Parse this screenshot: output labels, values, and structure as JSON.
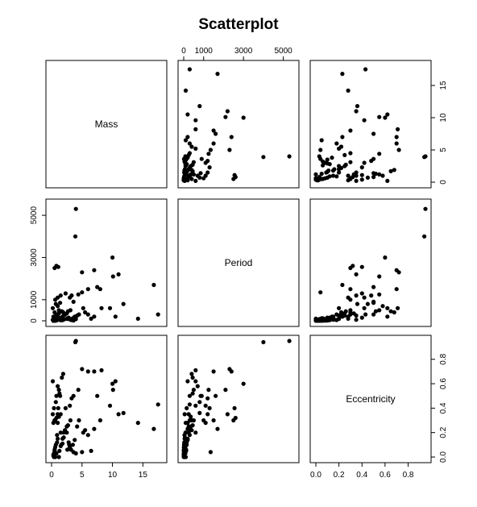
{
  "chart_data": {
    "type": "scatter",
    "title": "Scatterplot",
    "variables": [
      "Mass",
      "Period",
      "Eccentricity"
    ],
    "axes": {
      "Mass": {
        "range": [
          0,
          18
        ],
        "ticks": [
          0,
          5,
          10,
          15
        ],
        "tick_labels": [
          "0",
          "5",
          "10",
          "15"
        ]
      },
      "Period": {
        "range": [
          0,
          5500
        ],
        "ticks": [
          0,
          1000,
          3000,
          5000
        ],
        "tick_labels": [
          "0",
          "1000",
          "3000",
          "5000"
        ]
      },
      "Eccentricity": {
        "range": [
          0,
          0.95
        ],
        "ticks": [
          0,
          0.2,
          0.4,
          0.6,
          0.8
        ],
        "tick_labels": [
          "0.0",
          "0.2",
          "0.4",
          "0.6",
          "0.8"
        ]
      }
    },
    "grid": false,
    "points": [
      [
        0.3,
        2,
        0.02
      ],
      [
        0.5,
        3.5,
        0.05
      ],
      [
        0.4,
        5,
        0.0
      ],
      [
        0.6,
        9,
        0.08
      ],
      [
        0.7,
        15,
        0.1
      ],
      [
        0.8,
        20,
        0.03
      ],
      [
        0.9,
        30,
        0.12
      ],
      [
        1.0,
        50,
        0.15
      ],
      [
        1.2,
        70,
        0.0
      ],
      [
        1.5,
        100,
        0.2
      ],
      [
        0.3,
        4,
        0.01
      ],
      [
        0.5,
        6,
        0.06
      ],
      [
        1.3,
        120,
        0.05
      ],
      [
        1.6,
        150,
        0.1
      ],
      [
        1.8,
        200,
        0.15
      ],
      [
        0.4,
        3,
        0.03
      ],
      [
        0.9,
        40,
        0.18
      ],
      [
        2.0,
        250,
        0.2
      ],
      [
        2.2,
        300,
        0.22
      ],
      [
        2.5,
        350,
        0.25
      ],
      [
        0.6,
        1000,
        0.3
      ],
      [
        1.0,
        1100,
        0.28
      ],
      [
        1.5,
        1200,
        0.35
      ],
      [
        2.3,
        1300,
        0.4
      ],
      [
        0.5,
        2500,
        0.3
      ],
      [
        0.8,
        2600,
        0.32
      ],
      [
        1.1,
        2550,
        0.4
      ],
      [
        0.7,
        800,
        0.45
      ],
      [
        1.4,
        850,
        0.5
      ],
      [
        0.2,
        600,
        0.62
      ],
      [
        1.0,
        700,
        0.58
      ],
      [
        1.2,
        500,
        0.55
      ],
      [
        1.7,
        450,
        0.65
      ],
      [
        1.9,
        400,
        0.68
      ],
      [
        3.0,
        1100,
        0.42
      ],
      [
        3.3,
        1200,
        0.48
      ],
      [
        3.6,
        900,
        0.5
      ],
      [
        4.0,
        5300,
        0.95
      ],
      [
        4.4,
        1250,
        0.55
      ],
      [
        5.0,
        2300,
        0.72
      ],
      [
        6.0,
        1500,
        0.7
      ],
      [
        7.0,
        2400,
        0.7
      ],
      [
        7.5,
        1600,
        0.5
      ],
      [
        8.0,
        1500,
        0.3
      ],
      [
        8.2,
        600,
        0.71
      ],
      [
        2.8,
        150,
        0.12
      ],
      [
        3.0,
        80,
        0.08
      ],
      [
        3.2,
        40,
        0.06
      ],
      [
        3.5,
        120,
        0.1
      ],
      [
        3.8,
        200,
        0.14
      ],
      [
        4.0,
        80,
        0.03
      ],
      [
        4.2,
        250,
        0.25
      ],
      [
        4.5,
        300,
        0.3
      ],
      [
        5.2,
        600,
        0.2
      ],
      [
        5.5,
        400,
        0.22
      ],
      [
        6.0,
        300,
        0.18
      ],
      [
        6.5,
        100,
        0.05
      ],
      [
        7.0,
        200,
        0.23
      ],
      [
        2.0,
        60,
        0.16
      ],
      [
        2.5,
        90,
        0.2
      ],
      [
        1.5,
        25,
        0.09
      ],
      [
        1.8,
        35,
        0.11
      ],
      [
        3.6,
        15,
        0.04
      ],
      [
        2.6,
        120,
        0.06
      ],
      [
        9.6,
        600,
        0.42
      ],
      [
        10.0,
        3000,
        0.6
      ],
      [
        10.1,
        2100,
        0.55
      ],
      [
        10.5,
        200,
        0.62
      ],
      [
        11.0,
        2200,
        0.35
      ],
      [
        11.8,
        800,
        0.36
      ],
      [
        14.2,
        100,
        0.28
      ],
      [
        16.8,
        1700,
        0.23
      ],
      [
        17.5,
        300,
        0.43
      ],
      [
        0.3,
        200,
        0.28
      ],
      [
        0.5,
        400,
        0.3
      ],
      [
        1.0,
        250,
        0.35
      ],
      [
        1.2,
        350,
        0.33
      ],
      [
        0.4,
        150,
        0.4
      ],
      [
        0.8,
        300,
        0.5
      ],
      [
        1.3,
        450,
        0.52
      ],
      [
        0.6,
        100,
        0.0
      ],
      [
        0.2,
        50,
        0.35
      ],
      [
        2.7,
        450,
        0.26
      ],
      [
        3.1,
        500,
        0.3
      ],
      [
        2.9,
        80,
        0.1
      ],
      [
        5.0,
        1350,
        0.04
      ],
      [
        3.9,
        4000,
        0.94
      ]
    ]
  }
}
